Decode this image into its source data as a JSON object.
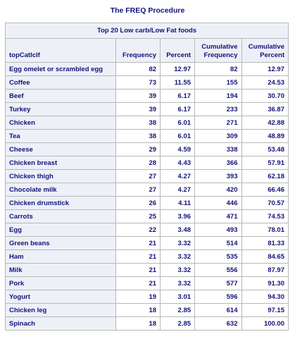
{
  "procedure_title": "The FREQ Procedure",
  "table": {
    "caption": "Top 20 Low carb/Low Fat foods",
    "headers": {
      "var": "topCatlclf",
      "frequency": "Frequency",
      "percent": "Percent",
      "cum_freq_line1": "Cumulative",
      "cum_freq_line2": "Frequency",
      "cum_pct_line1": "Cumulative",
      "cum_pct_line2": "Percent"
    },
    "rows": [
      {
        "item": "Egg omelet or scrambled egg",
        "frequency": "82",
        "percent": "12.97",
        "cum_freq": "82",
        "cum_pct": "12.97"
      },
      {
        "item": "Coffee",
        "frequency": "73",
        "percent": "11.55",
        "cum_freq": "155",
        "cum_pct": "24.53"
      },
      {
        "item": "Beef",
        "frequency": "39",
        "percent": "6.17",
        "cum_freq": "194",
        "cum_pct": "30.70"
      },
      {
        "item": "Turkey",
        "frequency": "39",
        "percent": "6.17",
        "cum_freq": "233",
        "cum_pct": "36.87"
      },
      {
        "item": "Chicken",
        "frequency": "38",
        "percent": "6.01",
        "cum_freq": "271",
        "cum_pct": "42.88"
      },
      {
        "item": "Tea",
        "frequency": "38",
        "percent": "6.01",
        "cum_freq": "309",
        "cum_pct": "48.89"
      },
      {
        "item": "Cheese",
        "frequency": "29",
        "percent": "4.59",
        "cum_freq": "338",
        "cum_pct": "53.48"
      },
      {
        "item": "Chicken breast",
        "frequency": "28",
        "percent": "4.43",
        "cum_freq": "366",
        "cum_pct": "57.91"
      },
      {
        "item": "Chicken thigh",
        "frequency": "27",
        "percent": "4.27",
        "cum_freq": "393",
        "cum_pct": "62.18"
      },
      {
        "item": "Chocolate milk",
        "frequency": "27",
        "percent": "4.27",
        "cum_freq": "420",
        "cum_pct": "66.46"
      },
      {
        "item": "Chicken drumstick",
        "frequency": "26",
        "percent": "4.11",
        "cum_freq": "446",
        "cum_pct": "70.57"
      },
      {
        "item": "Carrots",
        "frequency": "25",
        "percent": "3.96",
        "cum_freq": "471",
        "cum_pct": "74.53"
      },
      {
        "item": "Egg",
        "frequency": "22",
        "percent": "3.48",
        "cum_freq": "493",
        "cum_pct": "78.01"
      },
      {
        "item": "Green beans",
        "frequency": "21",
        "percent": "3.32",
        "cum_freq": "514",
        "cum_pct": "81.33"
      },
      {
        "item": "Ham",
        "frequency": "21",
        "percent": "3.32",
        "cum_freq": "535",
        "cum_pct": "84.65"
      },
      {
        "item": "Milk",
        "frequency": "21",
        "percent": "3.32",
        "cum_freq": "556",
        "cum_pct": "87.97"
      },
      {
        "item": "Pork",
        "frequency": "21",
        "percent": "3.32",
        "cum_freq": "577",
        "cum_pct": "91.30"
      },
      {
        "item": "Yogurt",
        "frequency": "19",
        "percent": "3.01",
        "cum_freq": "596",
        "cum_pct": "94.30"
      },
      {
        "item": "Chicken leg",
        "frequency": "18",
        "percent": "2.85",
        "cum_freq": "614",
        "cum_pct": "97.15"
      },
      {
        "item": "Spinach",
        "frequency": "18",
        "percent": "2.85",
        "cum_freq": "632",
        "cum_pct": "100.00"
      }
    ]
  }
}
